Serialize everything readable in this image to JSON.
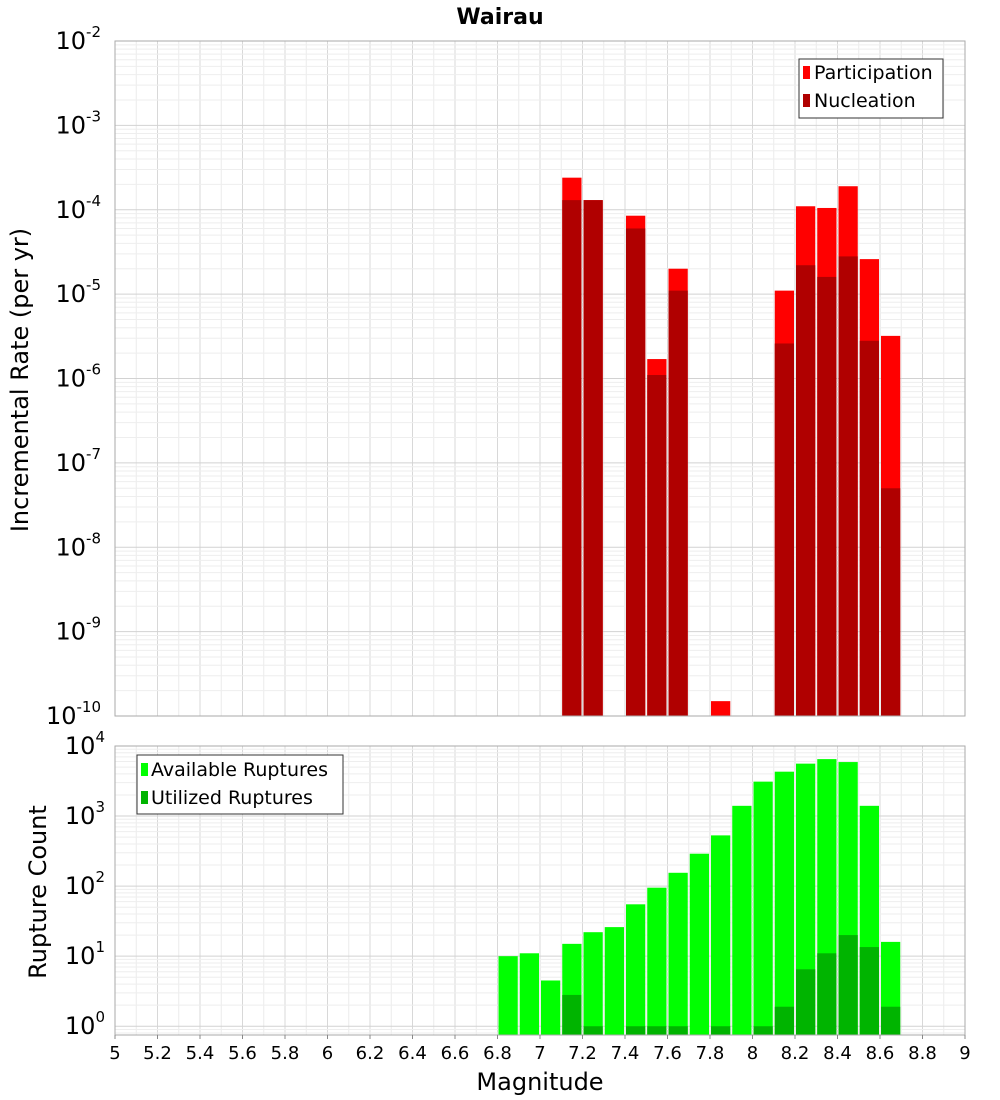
{
  "chart_data": [
    {
      "type": "bar",
      "title": "Wairau",
      "xlabel": "",
      "ylabel": "Incremental Rate (per yr)",
      "yscale": "log",
      "ylim": [
        1e-10,
        0.01
      ],
      "xlim": [
        5,
        9
      ],
      "legend_position": "top-right",
      "grid": true,
      "bin_centers": [
        7.15,
        7.25,
        7.45,
        7.55,
        7.65,
        7.85,
        8.15,
        8.25,
        8.35,
        8.45,
        8.55,
        8.65
      ],
      "series": [
        {
          "name": "Participation",
          "color": "#ff0000",
          "values": [
            0.00024,
            0.00013,
            8.5e-05,
            1.7e-06,
            2e-05,
            1.5e-10,
            1.1e-05,
            0.00011,
            0.000105,
            0.00019,
            2.6e-05,
            3.2e-06
          ]
        },
        {
          "name": "Nucleation",
          "color": "#b00000",
          "values": [
            0.00013,
            0.00013,
            6e-05,
            1.1e-06,
            1.1e-05,
            null,
            2.6e-06,
            2.2e-05,
            1.6e-05,
            2.8e-05,
            2.8e-06,
            5e-08
          ]
        }
      ],
      "y_tick_exponents": [
        -10,
        -9,
        -8,
        -7,
        -6,
        -5,
        -4,
        -3,
        -2
      ]
    },
    {
      "type": "bar",
      "title": "",
      "xlabel": "Magnitude",
      "ylabel": "Rupture Count",
      "yscale": "log",
      "ylim": [
        0.75,
        10000
      ],
      "xlim": [
        5,
        9
      ],
      "legend_position": "top-left",
      "grid": true,
      "bin_centers": [
        6.85,
        6.95,
        7.05,
        7.15,
        7.25,
        7.35,
        7.45,
        7.55,
        7.65,
        7.75,
        7.85,
        7.95,
        8.05,
        8.15,
        8.25,
        8.35,
        8.45,
        8.55,
        8.65
      ],
      "series": [
        {
          "name": "Available Ruptures",
          "color": "#00ff00",
          "values": [
            10,
            11,
            4.5,
            15,
            22,
            26,
            55,
            95,
            155,
            290,
            530,
            1400,
            3100,
            4300,
            5600,
            6500,
            5900,
            1400,
            16
          ]
        },
        {
          "name": "Utilized Ruptures",
          "color": "#00b400",
          "values": [
            null,
            null,
            null,
            2.8,
            1,
            null,
            1,
            1,
            1,
            null,
            1,
            null,
            1,
            1.9,
            6.5,
            11,
            20,
            13.5,
            1.9
          ]
        }
      ],
      "y_tick_exponents": [
        0,
        1,
        2,
        3,
        4
      ],
      "x_ticks": [
        "5",
        "5.2",
        "5.4",
        "5.6",
        "5.8",
        "6",
        "6.2",
        "6.4",
        "6.6",
        "6.8",
        "7",
        "7.2",
        "7.4",
        "7.6",
        "7.8",
        "8",
        "8.2",
        "8.4",
        "8.6",
        "8.8",
        "9"
      ]
    }
  ]
}
